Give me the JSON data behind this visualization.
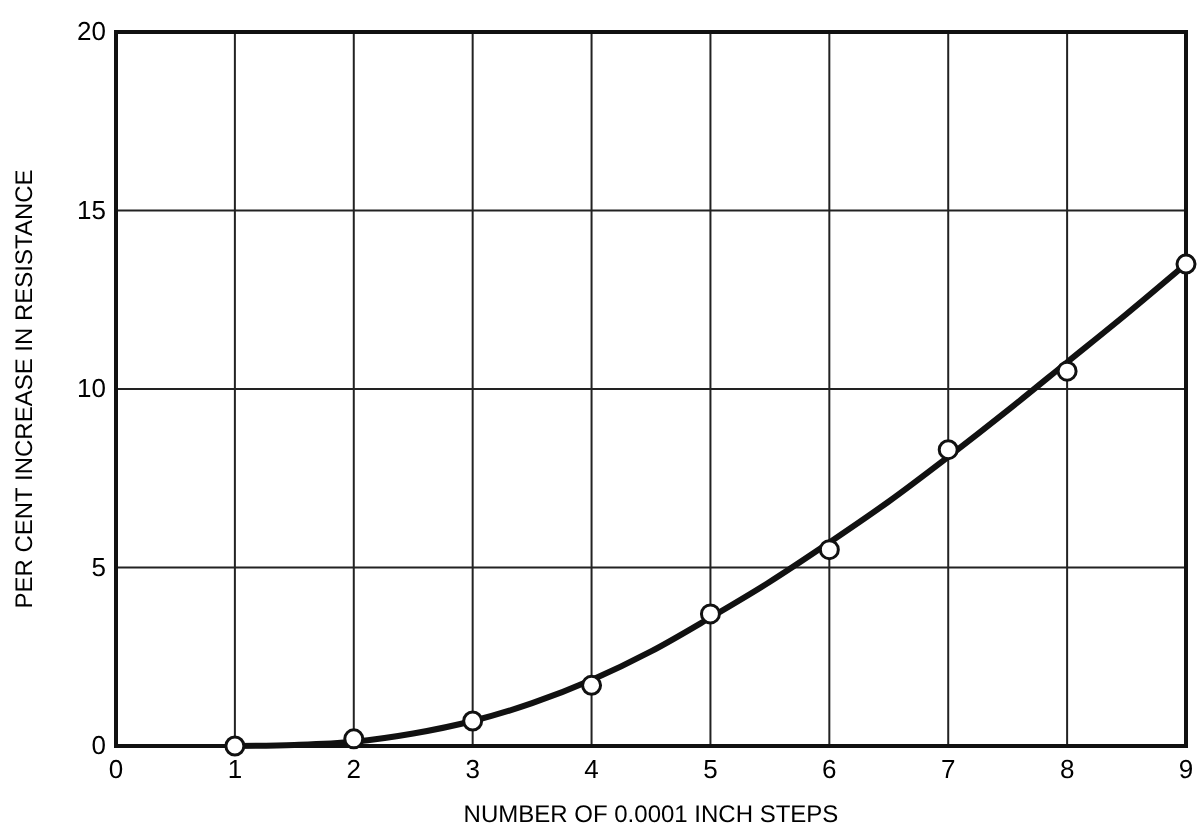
{
  "chart_data": {
    "type": "scatter",
    "xlabel": "NUMBER OF 0.0001 INCH STEPS",
    "ylabel": "PER CENT INCREASE IN RESISTANCE",
    "xlim": [
      0,
      9
    ],
    "xticks": [
      0,
      1,
      2,
      3,
      4,
      5,
      6,
      7,
      8,
      9
    ],
    "ylim": [
      0,
      20
    ],
    "yticks": [
      0,
      5,
      10,
      15,
      20
    ],
    "grid": true,
    "series": [
      {
        "type": "line",
        "color": "#111111",
        "marker": "none",
        "x": [
          1,
          1.5,
          2,
          2.5,
          3,
          3.5,
          4,
          4.5,
          5,
          5.5,
          6,
          6.5,
          7,
          7.5,
          8,
          8.5,
          9
        ],
        "values": [
          0,
          0.03,
          0.12,
          0.35,
          0.7,
          1.2,
          1.85,
          2.65,
          3.6,
          4.6,
          5.7,
          6.85,
          8.1,
          9.4,
          10.75,
          12.1,
          13.5
        ]
      },
      {
        "color": "#111111",
        "marker": "circle",
        "x": [
          1,
          2,
          3,
          4,
          5,
          6,
          7,
          8,
          9
        ],
        "values": [
          0,
          0.2,
          0.7,
          1.7,
          3.7,
          5.5,
          8.3,
          10.5,
          13.5
        ]
      }
    ]
  }
}
